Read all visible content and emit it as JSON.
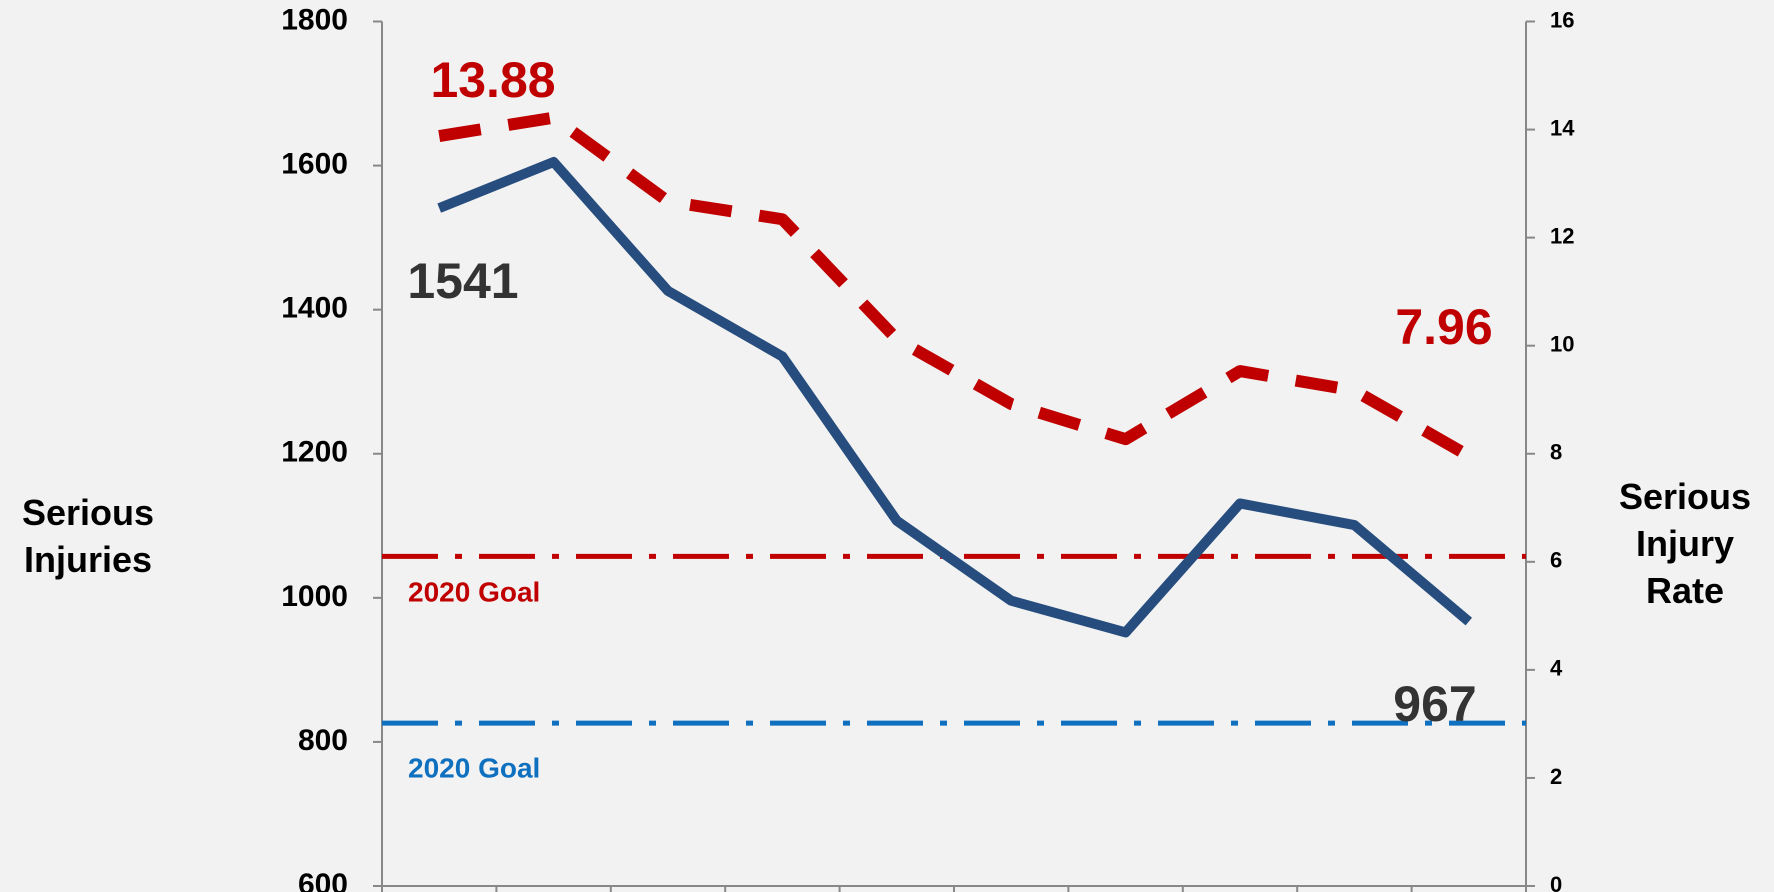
{
  "chart_data": {
    "type": "line",
    "ylabel": "Serious Injuries",
    "y2label": "Serious Injury Rate",
    "categories": [
      null,
      null,
      null,
      null,
      null,
      null,
      null,
      null,
      null,
      null
    ],
    "series": [
      {
        "name": "Serious Injuries",
        "color": "#264d7e",
        "axis": "y",
        "dash": "solid",
        "values": [
          1541,
          1605,
          1426,
          1335,
          1107,
          996,
          952,
          1131,
          1101,
          967
        ]
      },
      {
        "name": "Serious Injury Rate",
        "color": "#c00000",
        "axis": "y2",
        "dash": "dashed",
        "values": [
          13.88,
          14.22,
          12.67,
          12.34,
          10.12,
          8.92,
          8.27,
          9.53,
          9.17,
          7.96
        ]
      }
    ],
    "goals": [
      {
        "label": "2020 Goal",
        "value": 6.1,
        "axis": "y2",
        "color": "#c00000"
      },
      {
        "label": "2020 Goal",
        "value": 826,
        "axis": "y",
        "color": "#1070c0"
      }
    ],
    "ylim": [
      600,
      1800
    ],
    "yticks": [
      600,
      800,
      1000,
      1200,
      1400,
      1600,
      1800
    ],
    "y2lim": [
      0,
      16
    ],
    "y2ticks": [
      0,
      2,
      4,
      6,
      8,
      10,
      12,
      14,
      16
    ],
    "grid": false
  }
}
